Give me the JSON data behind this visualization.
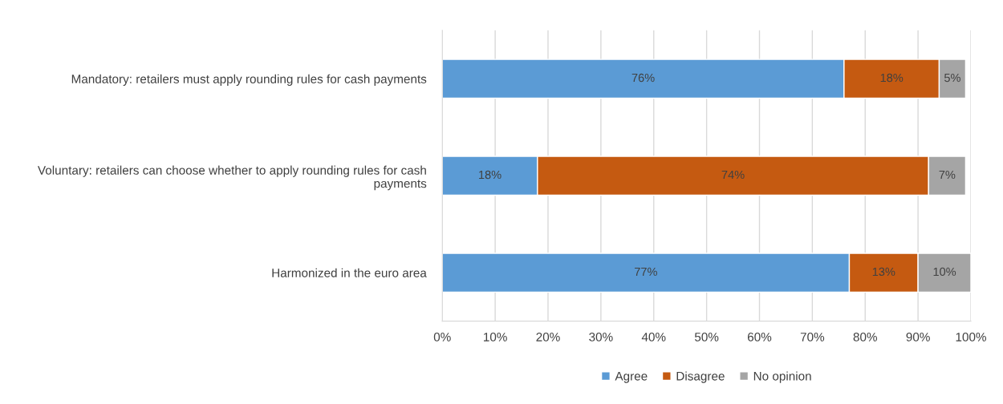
{
  "chart_data": {
    "type": "bar",
    "orientation": "horizontal",
    "stacked": true,
    "categories": [
      "Mandatory: retailers must apply rounding rules for cash payments",
      "Voluntary: retailers can choose whether to apply rounding rules for cash payments",
      "Harmonized in the euro area"
    ],
    "series": [
      {
        "name": "Agree",
        "color": "#5b9bd5",
        "values": [
          76,
          18,
          77
        ]
      },
      {
        "name": "Disagree",
        "color": "#c55a11",
        "values": [
          18,
          74,
          13
        ]
      },
      {
        "name": "No opinion",
        "color": "#a5a5a5",
        "values": [
          5,
          7,
          10
        ]
      }
    ],
    "value_labels": [
      [
        "76%",
        "18%",
        "77%"
      ],
      [
        "18%",
        "74%",
        "13%"
      ],
      [
        "5%",
        "7%",
        "10%"
      ]
    ],
    "xlim": [
      0,
      100
    ],
    "xticks": [
      {
        "value": 0,
        "label": "0%"
      },
      {
        "value": 10,
        "label": "10%"
      },
      {
        "value": 20,
        "label": "20%"
      },
      {
        "value": 30,
        "label": "30%"
      },
      {
        "value": 40,
        "label": "40%"
      },
      {
        "value": 50,
        "label": "50%"
      },
      {
        "value": 60,
        "label": "60%"
      },
      {
        "value": 70,
        "label": "70%"
      },
      {
        "value": 80,
        "label": "80%"
      },
      {
        "value": 90,
        "label": "90%"
      },
      {
        "value": 100,
        "label": "100%"
      }
    ],
    "grid": "x",
    "legend": "bottom"
  }
}
